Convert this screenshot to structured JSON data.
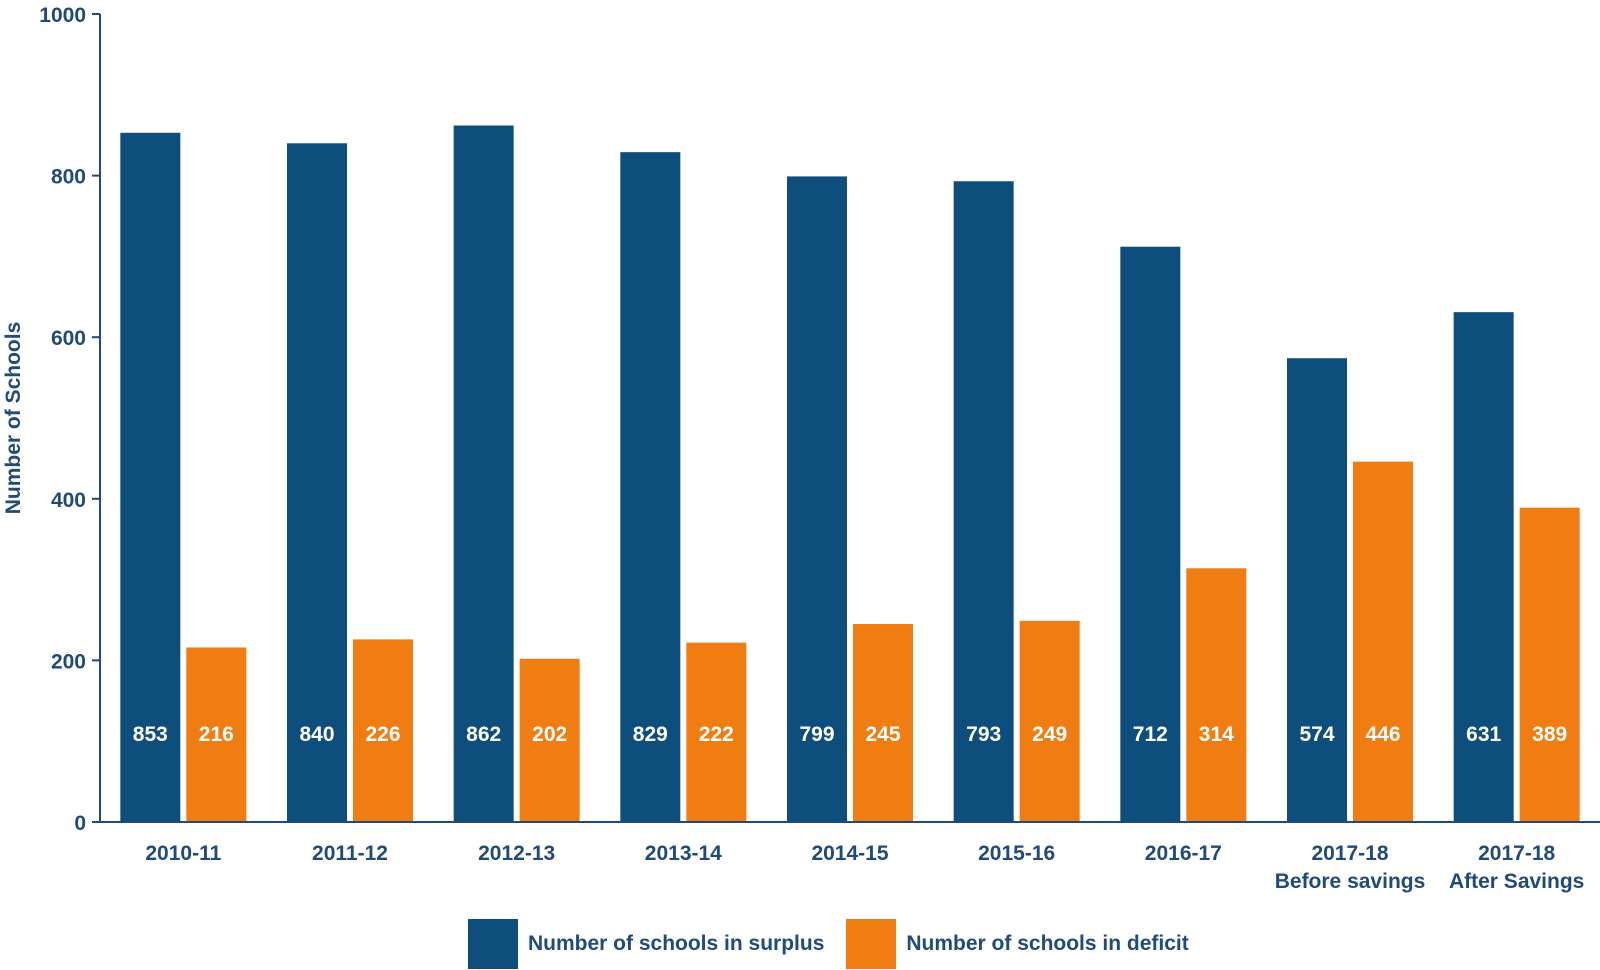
{
  "colors": {
    "surplus": "#0e4e7c",
    "deficit": "#f07d12",
    "axis": "#1f4a7a",
    "bar_label": "#ffffff"
  },
  "chart_data": {
    "type": "bar",
    "title": "",
    "xlabel": "",
    "ylabel": "Number of Schools",
    "ylim": [
      0,
      1000
    ],
    "yticks": [
      0,
      200,
      400,
      600,
      800,
      1000
    ],
    "categories": [
      [
        "2010-11"
      ],
      [
        "2011-12"
      ],
      [
        "2012-13"
      ],
      [
        "2013-14"
      ],
      [
        "2014-15"
      ],
      [
        "2015-16"
      ],
      [
        "2016-17"
      ],
      [
        "2017-18",
        "Before savings"
      ],
      [
        "2017-18",
        "After Savings"
      ]
    ],
    "series": [
      {
        "name": "Number of schools in surplus",
        "values": [
          853,
          840,
          862,
          829,
          799,
          793,
          712,
          574,
          631
        ]
      },
      {
        "name": "Number of schools in deficit",
        "values": [
          216,
          226,
          202,
          222,
          245,
          249,
          314,
          446,
          389
        ]
      }
    ],
    "legend_position": "bottom",
    "grid": false,
    "data_labels": true
  },
  "legend": {
    "surplus_label": "Number of schools in surplus",
    "deficit_label": "Number of schools in deficit"
  }
}
